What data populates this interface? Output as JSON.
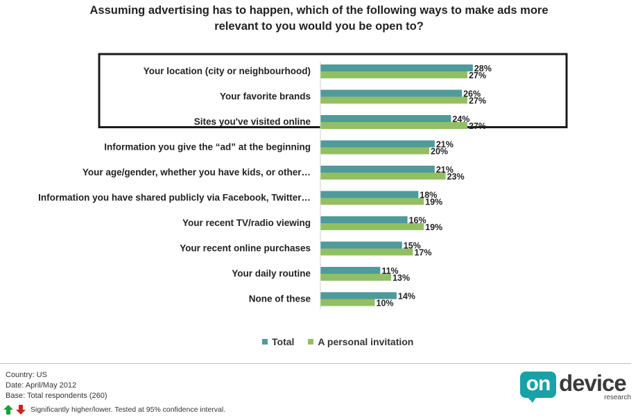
{
  "chart_data": {
    "type": "bar",
    "orientation": "horizontal",
    "title_lines": [
      "Assuming advertising has to happen, which of the following ways to make ads more",
      "relevant to you would you be open to?"
    ],
    "categories": [
      "Your location (city or neighbourhood)",
      "Your favorite brands",
      "Sites you've visited online",
      "Information you give the “ad” at the beginning",
      "Your age/gender, whether you have kids, or other…",
      "Information you have shared publicly via Facebook, Twitter…",
      "Your recent TV/radio viewing",
      "Your recent online purchases",
      "Your daily routine",
      "None of these"
    ],
    "series": [
      {
        "name": "Total",
        "color": "#4f9a9a",
        "values": [
          28,
          26,
          24,
          21,
          21,
          18,
          16,
          15,
          11,
          14
        ]
      },
      {
        "name": "A personal invitation",
        "color": "#92bf63",
        "values": [
          27,
          27,
          27,
          20,
          23,
          19,
          19,
          17,
          13,
          10
        ]
      }
    ],
    "value_suffix": "%",
    "xlim": [
      0,
      60
    ],
    "highlighted_categories": [
      0,
      1,
      2
    ],
    "legend_position": "bottom",
    "grid": false
  },
  "footer": {
    "country": "Country: US",
    "date": "Date: April/May 2012",
    "base": "Base: Total respondents (260)",
    "significance": "Significantly higher/lower. Tested at 95% confidence interval."
  },
  "logo": {
    "on": "on",
    "device": "device",
    "research": "research"
  },
  "colors": {
    "arrow_up": "#1e9e3a",
    "arrow_down": "#d0201f",
    "highlight_box": "#1a1a1a"
  }
}
